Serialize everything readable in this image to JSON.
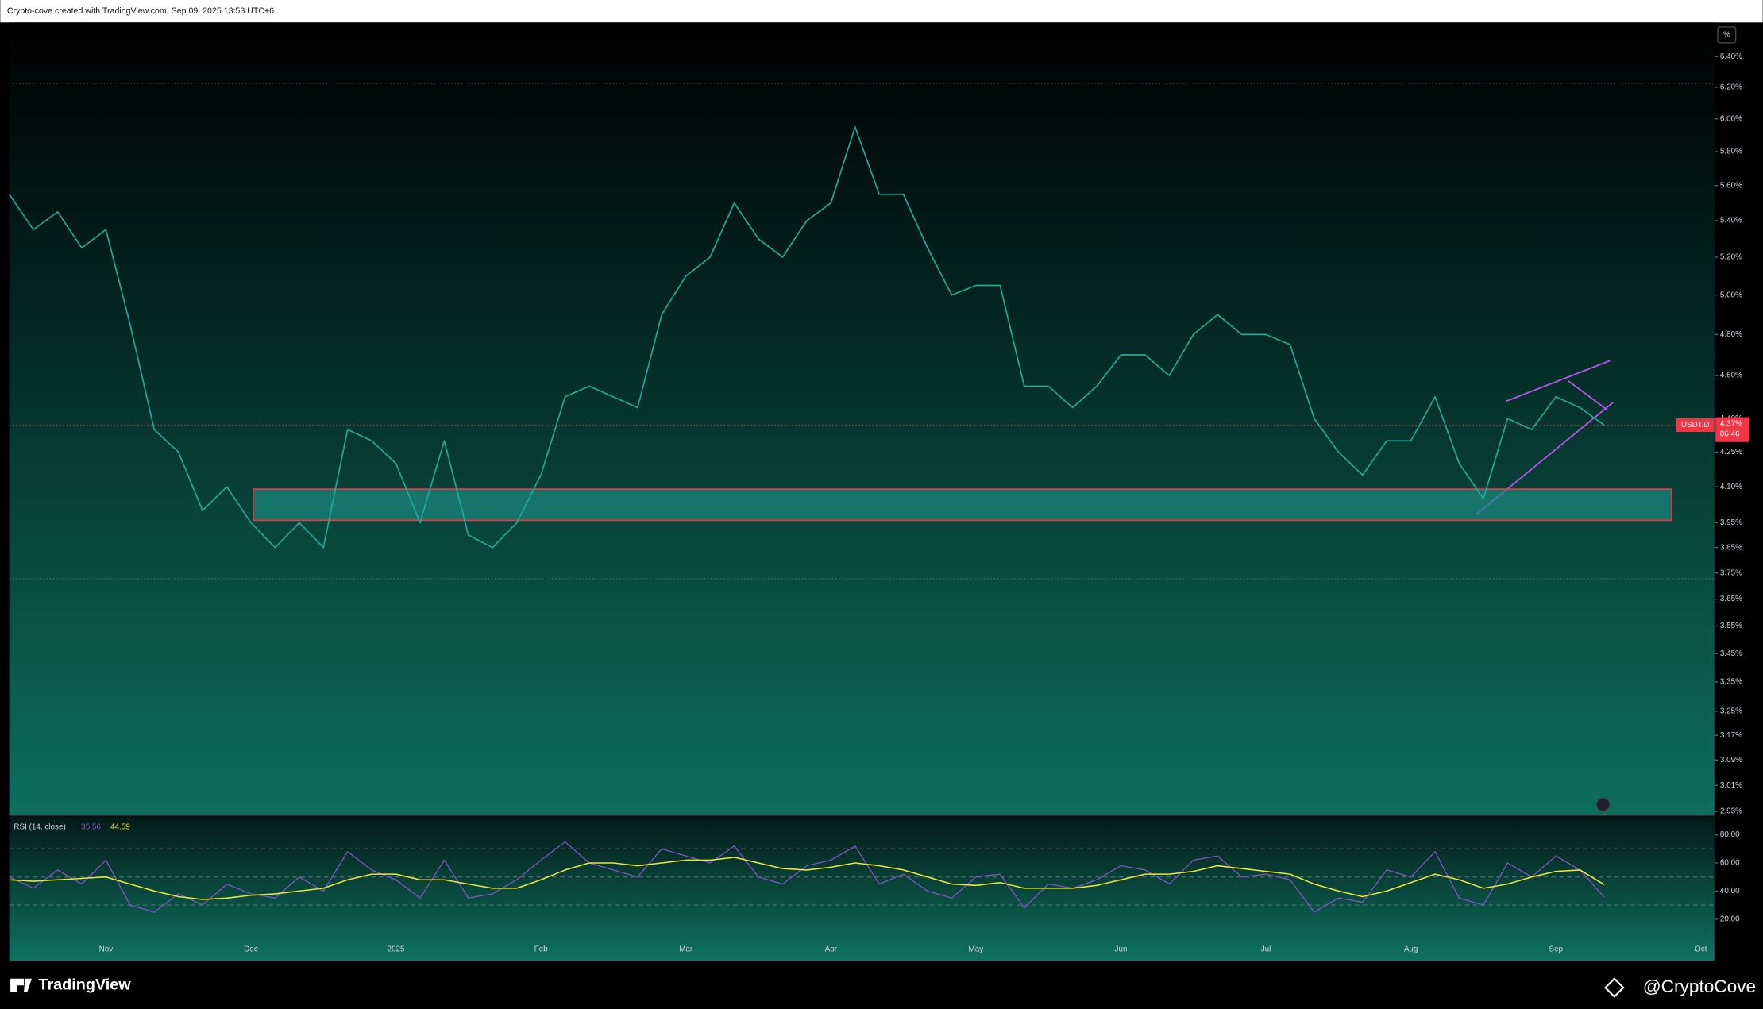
{
  "header": "Crypto-cove created with TradingView.com, Sep 09, 2025 13:53 UTC+6",
  "scale_button": "%",
  "footer": {
    "brand": "TradingView",
    "author": "@CryptoCove"
  },
  "chart_data": [
    {
      "type": "line",
      "log_scale": true,
      "categories": [
        null,
        null,
        null,
        null,
        "Nov",
        null,
        null,
        null,
        null,
        null,
        "Dec",
        null,
        null,
        null,
        null,
        null,
        "2025",
        null,
        null,
        null,
        null,
        null,
        "Feb",
        null,
        null,
        null,
        null,
        null,
        "Mar",
        null,
        null,
        null,
        null,
        null,
        "Apr",
        null,
        null,
        null,
        null,
        null,
        "May",
        null,
        null,
        null,
        null,
        null,
        "Jun",
        null,
        null,
        null,
        null,
        null,
        "Jul",
        null,
        null,
        null,
        null,
        null,
        "Aug",
        null,
        null,
        null,
        null,
        null,
        "Sep",
        null,
        null,
        null,
        null,
        null,
        "Oct"
      ],
      "series": [
        {
          "name": "USDT.D",
          "color": "#26a69a",
          "values": [
            5.55,
            5.35,
            5.45,
            5.25,
            5.35,
            4.85,
            4.35,
            4.25,
            4.0,
            4.1,
            3.95,
            3.85,
            3.95,
            3.85,
            4.35,
            4.3,
            4.2,
            3.95,
            4.3,
            3.9,
            3.85,
            3.95,
            4.15,
            4.5,
            4.55,
            4.5,
            4.45,
            4.9,
            5.1,
            5.2,
            5.5,
            5.3,
            5.2,
            5.4,
            5.5,
            5.95,
            5.55,
            5.55,
            5.25,
            5.0,
            5.05,
            5.05,
            4.55,
            4.55,
            4.45,
            4.55,
            4.7,
            4.7,
            4.6,
            4.8,
            4.9,
            4.8,
            4.8,
            4.75,
            4.4,
            4.25,
            4.15,
            4.3,
            4.3,
            4.5,
            4.2,
            4.05,
            4.4,
            4.35,
            4.5,
            4.45,
            4.37,
            null,
            null,
            null,
            null
          ]
        }
      ],
      "ylim": [
        2.92,
        6.63
      ],
      "yticks": [
        {
          "value": 6.4,
          "label": "6.40%"
        },
        {
          "value": 6.2,
          "label": "6.20%"
        },
        {
          "value": 6.0,
          "label": "6.00%"
        },
        {
          "value": 5.8,
          "label": "5.80%"
        },
        {
          "value": 5.6,
          "label": "5.60%"
        },
        {
          "value": 5.4,
          "label": "5.40%"
        },
        {
          "value": 5.2,
          "label": "5.20%"
        },
        {
          "value": 5.0,
          "label": "5.00%"
        },
        {
          "value": 4.8,
          "label": "4.80%"
        },
        {
          "value": 4.6,
          "label": "4.60%"
        },
        {
          "value": 4.4,
          "label": "4.40%"
        },
        {
          "value": 4.25,
          "label": "4.25%"
        },
        {
          "value": 4.1,
          "label": "4.10%"
        },
        {
          "value": 3.95,
          "label": "3.95%"
        },
        {
          "value": 3.85,
          "label": "3.85%"
        },
        {
          "value": 3.75,
          "label": "3.75%"
        },
        {
          "value": 3.65,
          "label": "3.65%"
        },
        {
          "value": 3.55,
          "label": "3.55%"
        },
        {
          "value": 3.45,
          "label": "3.45%"
        },
        {
          "value": 3.35,
          "label": "3.35%"
        },
        {
          "value": 3.25,
          "label": "3.25%"
        },
        {
          "value": 3.17,
          "label": "3.17%"
        },
        {
          "value": 3.09,
          "label": "3.09%"
        },
        {
          "value": 3.01,
          "label": "3.01%"
        },
        {
          "value": 2.93,
          "label": "2.93%"
        }
      ],
      "last_price": {
        "symbol": "USDT.D",
        "value": 4.37,
        "label": "4.37%",
        "countdown": "06:46",
        "color": "#f23645"
      },
      "support_zone": {
        "low": 3.96,
        "high": 4.09,
        "color": "#f23645"
      }
    },
    {
      "type": "rsi",
      "title": "RSI (14, close)",
      "series": [
        {
          "name": "RSI",
          "color": "#7e57c2",
          "value_label": 35.56,
          "values": [
            50,
            42,
            55,
            45,
            62,
            30,
            25,
            38,
            30,
            45,
            38,
            35,
            50,
            40,
            68,
            55,
            48,
            35,
            62,
            35,
            38,
            48,
            62,
            75,
            60,
            55,
            50,
            70,
            65,
            60,
            72,
            50,
            45,
            58,
            62,
            72,
            45,
            52,
            40,
            35,
            50,
            52,
            28,
            45,
            42,
            48,
            58,
            55,
            45,
            62,
            65,
            50,
            52,
            48,
            25,
            35,
            32,
            55,
            50,
            68,
            35,
            30,
            60,
            50,
            65,
            55,
            35.56,
            null,
            null,
            null,
            null
          ]
        },
        {
          "name": "RSI MA",
          "color": "#e8e83a",
          "value_label": 44.59,
          "values": [
            48,
            47,
            48,
            49,
            50,
            45,
            40,
            36,
            34,
            35,
            37,
            38,
            40,
            42,
            48,
            52,
            52,
            48,
            48,
            45,
            42,
            42,
            48,
            55,
            60,
            60,
            58,
            60,
            62,
            62,
            64,
            60,
            56,
            55,
            57,
            60,
            58,
            55,
            50,
            45,
            44,
            46,
            42,
            42,
            42,
            44,
            48,
            52,
            52,
            54,
            58,
            56,
            54,
            52,
            45,
            40,
            36,
            40,
            46,
            52,
            48,
            42,
            45,
            50,
            54,
            55,
            44.59,
            null,
            null,
            null,
            null
          ]
        }
      ],
      "ylim": [
        10.4,
        92.8
      ],
      "yticks": [
        {
          "value": 80,
          "label": "80.00"
        },
        {
          "value": 60,
          "label": "60.00"
        },
        {
          "value": 40,
          "label": "40.00"
        },
        {
          "value": 20,
          "label": "20.00"
        }
      ],
      "bands": [
        70,
        50,
        30
      ]
    }
  ]
}
